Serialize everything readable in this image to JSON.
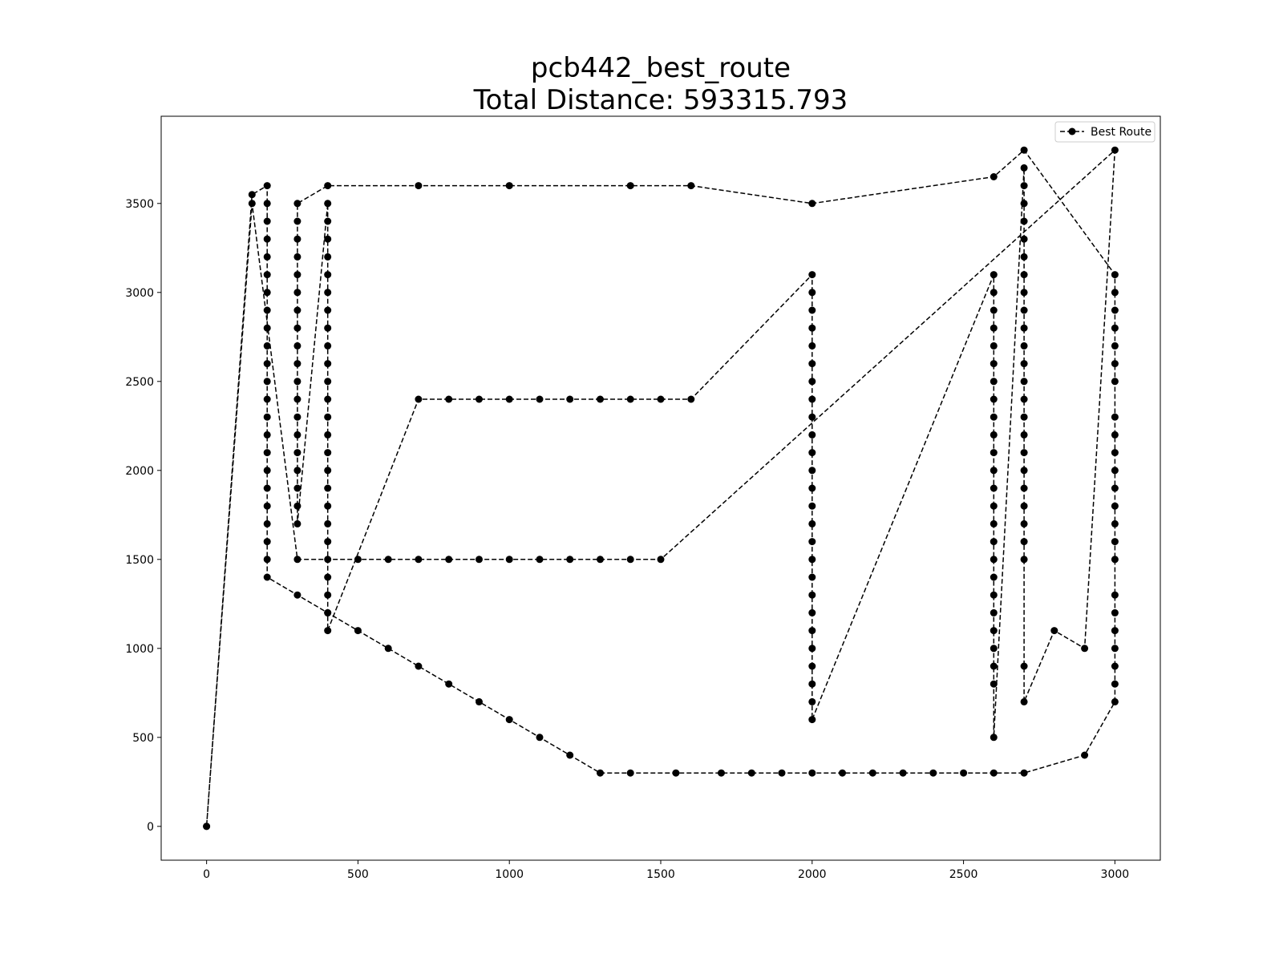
{
  "chart_data": {
    "type": "line",
    "title_line1": "pcb442_best_route",
    "title_line2": "Total Distance: 593315.793",
    "xlabel": "",
    "ylabel": "",
    "xlim": [
      -150,
      3150
    ],
    "ylim": [
      -190,
      3990
    ],
    "x_ticks": [
      "0",
      "500",
      "1000",
      "1500",
      "2000",
      "2500",
      "3000"
    ],
    "y_ticks": [
      "0",
      "500",
      "1000",
      "1500",
      "2000",
      "2500",
      "3000",
      "3500"
    ],
    "x_tick_values": [
      0,
      500,
      1000,
      1500,
      2000,
      2500,
      3000
    ],
    "y_tick_values": [
      0,
      500,
      1000,
      1500,
      2000,
      2500,
      3000,
      3500
    ],
    "grid": false,
    "legend_position": "top-right",
    "series": [
      {
        "name": "Best Route",
        "color": "#000000",
        "line_style": "dashed",
        "marker": "circle",
        "x": [
          0,
          150,
          200,
          200,
          200,
          200,
          200,
          200,
          200,
          200,
          200,
          200,
          200,
          200,
          200,
          200,
          200,
          200,
          200,
          200,
          200,
          200,
          200,
          200,
          200,
          300,
          400,
          500,
          600,
          700,
          800,
          900,
          1000,
          1100,
          1200,
          1300,
          1400,
          1550,
          1700,
          1800,
          1900,
          2000,
          2100,
          2200,
          2300,
          2400,
          2500,
          2600,
          2700,
          2900,
          3000,
          3000,
          3000,
          3000,
          3000,
          3000,
          3000,
          3000,
          3000,
          3000,
          3000,
          3000,
          3000,
          3000,
          3000,
          3000,
          3000,
          3000,
          3000,
          3000,
          3000,
          3000,
          3000,
          2700,
          2600,
          2000,
          1600,
          1400,
          1000,
          700,
          400,
          300,
          300,
          300,
          300,
          300,
          300,
          300,
          300,
          300,
          300,
          300,
          300,
          300,
          300,
          300,
          300,
          300,
          300,
          300,
          400,
          400,
          400,
          400,
          400,
          400,
          400,
          400,
          400,
          400,
          400,
          400,
          400,
          400,
          400,
          400,
          400,
          400,
          400,
          400,
          400,
          400,
          400,
          400,
          400,
          700,
          800,
          900,
          1000,
          1100,
          1200,
          1300,
          1400,
          1500,
          1600,
          2000,
          2000,
          2000,
          2000,
          2000,
          2000,
          2000,
          2000,
          2000,
          2000,
          2000,
          2000,
          2000,
          2000,
          2000,
          2000,
          2000,
          2000,
          2000,
          2000,
          2000,
          2000,
          2000,
          2000,
          2000,
          2000,
          2600,
          2600,
          2600,
          2600,
          2600,
          2600,
          2600,
          2600,
          2600,
          2600,
          2600,
          2600,
          2600,
          2600,
          2600,
          2600,
          2600,
          2600,
          2600,
          2600,
          2600,
          2600,
          2600,
          2600,
          2600,
          2700,
          2700,
          2700,
          2700,
          2700,
          2700,
          2700,
          2700,
          2700,
          2700,
          2700,
          2700,
          2700,
          2700,
          2700,
          2700,
          2700,
          2700,
          2700,
          2700,
          2700,
          2700,
          2700,
          2700,
          2700,
          2800,
          2900,
          3000,
          1500,
          1400,
          1300,
          1200,
          1100,
          1000,
          900,
          800,
          700,
          600,
          500,
          300,
          150,
          0
        ],
        "y": [
          0,
          3550,
          3600,
          3500,
          3400,
          3300,
          3200,
          3100,
          3000,
          2900,
          2800,
          2700,
          2600,
          2500,
          2400,
          2300,
          2200,
          2100,
          2000,
          1900,
          1800,
          1700,
          1600,
          1500,
          1400,
          1300,
          1200,
          1100,
          1000,
          900,
          800,
          700,
          600,
          500,
          400,
          300,
          300,
          300,
          300,
          300,
          300,
          300,
          300,
          300,
          300,
          300,
          300,
          300,
          300,
          400,
          700,
          800,
          900,
          1000,
          1100,
          1200,
          1300,
          1500,
          1600,
          1700,
          1800,
          1900,
          2000,
          2100,
          2200,
          2300,
          2500,
          2600,
          2700,
          2800,
          2900,
          3000,
          3100,
          3800,
          3650,
          3500,
          3600,
          3600,
          3600,
          3600,
          3600,
          3500,
          3400,
          3300,
          3200,
          3100,
          3000,
          2900,
          2800,
          2700,
          2600,
          2500,
          2400,
          2300,
          2200,
          2100,
          2000,
          1900,
          1800,
          1700,
          3500,
          3400,
          3300,
          3200,
          3100,
          3000,
          2900,
          2800,
          2700,
          2600,
          2500,
          2400,
          2300,
          2200,
          2100,
          2000,
          1900,
          1800,
          1700,
          1600,
          1500,
          1400,
          1300,
          1200,
          1100,
          2400,
          2400,
          2400,
          2400,
          2400,
          2400,
          2400,
          2400,
          2400,
          2400,
          3100,
          3000,
          2900,
          2800,
          2700,
          2600,
          2500,
          2400,
          2300,
          2200,
          2100,
          2000,
          1900,
          1800,
          1700,
          1600,
          1500,
          1400,
          1300,
          1200,
          1100,
          1000,
          900,
          800,
          700,
          600,
          3100,
          3000,
          2900,
          2800,
          2700,
          2600,
          2500,
          2400,
          2300,
          2200,
          2100,
          2000,
          1900,
          1800,
          1700,
          1600,
          1500,
          1400,
          1300,
          1200,
          1100,
          1000,
          900,
          800,
          500,
          3700,
          3600,
          3500,
          3400,
          3300,
          3200,
          3100,
          3000,
          2900,
          2800,
          2700,
          2600,
          2500,
          2400,
          2300,
          2200,
          2100,
          2000,
          1900,
          1800,
          1700,
          1600,
          1500,
          900,
          700,
          1100,
          1000,
          3800,
          1500,
          1500,
          1500,
          1500,
          1500,
          1500,
          1500,
          1500,
          1500,
          1500,
          1500,
          1500,
          3500,
          0
        ]
      }
    ]
  }
}
